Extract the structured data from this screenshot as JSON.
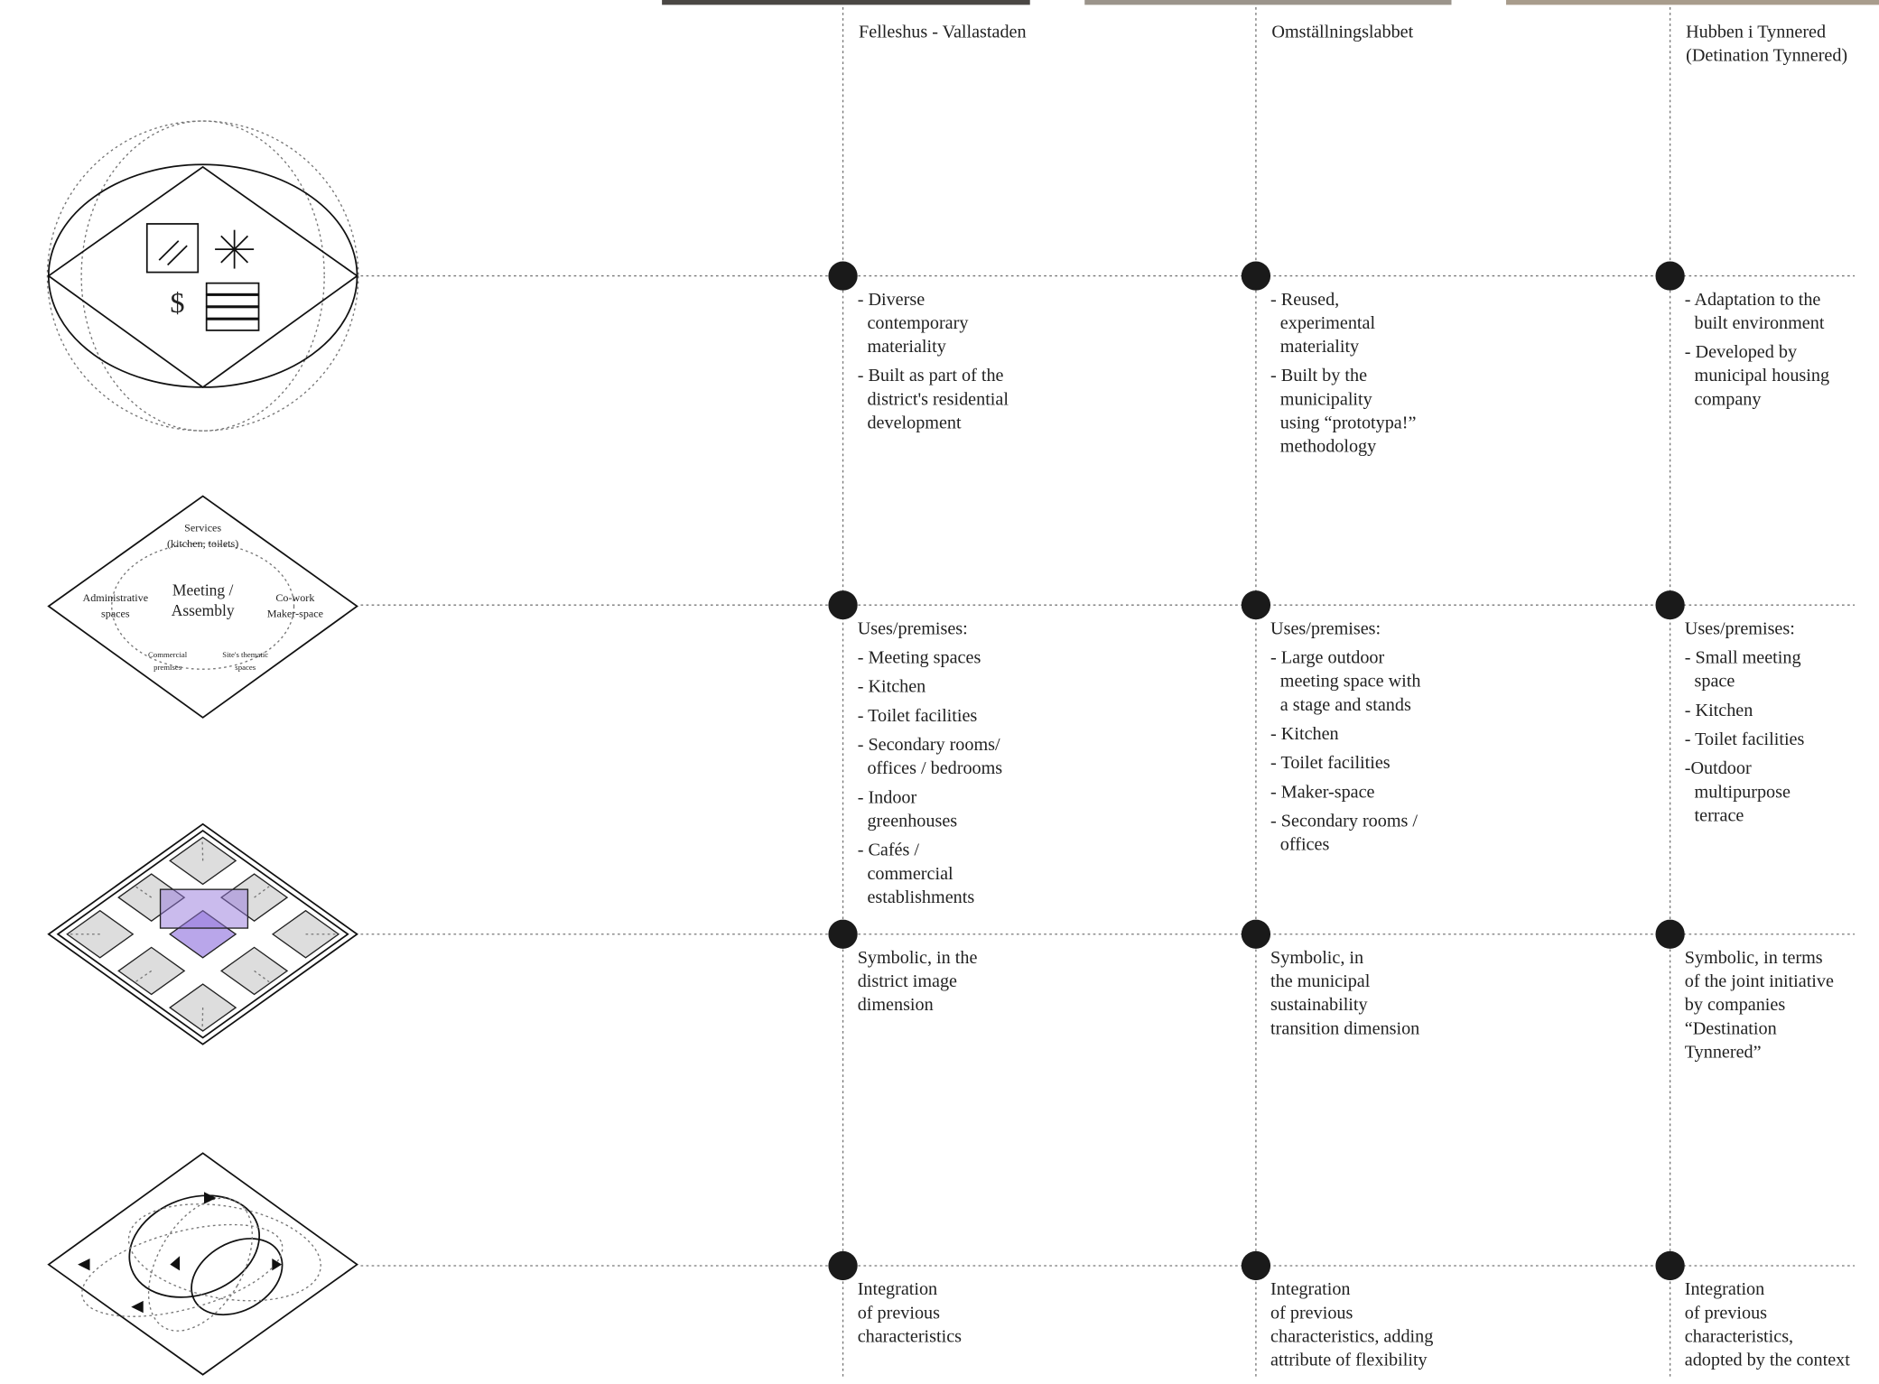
{
  "columns": [
    {
      "title": [
        "Felleshus - Vallastaden"
      ]
    },
    {
      "title": [
        "Omställningslabbet"
      ]
    },
    {
      "title": [
        "Hubben i Tynnered",
        "(Detination Tynnered)"
      ]
    }
  ],
  "icons": {
    "materiality": {
      "symbol": "$"
    },
    "program": {
      "services": [
        "Services",
        "(kitchen, toilets)"
      ],
      "administrative": [
        "Administrative",
        "spaces"
      ],
      "center": [
        "Meeting /",
        "Assembly"
      ],
      "cowork": [
        "Co-work",
        "Maker-space"
      ],
      "commercial": [
        "Commercial",
        "premises"
      ],
      "thematic": [
        "Site's thematic",
        "spaces"
      ]
    }
  },
  "rows": [
    {
      "cells": [
        [
          "- Diverse",
          "contemporary",
          "materiality",
          "- Built as part of the",
          "district's residential",
          "development"
        ],
        [
          "- Reused,",
          "experimental",
          "materiality",
          "- Built by the",
          "municipality",
          "using “prototypa!”",
          "methodology"
        ],
        [
          "- Adaptation to the",
          "built environment",
          "- Developed by",
          "municipal housing",
          "company"
        ]
      ]
    },
    {
      "cells": [
        [
          "Uses/premises:",
          "- Meeting spaces",
          "- Kitchen",
          "- Toilet facilities",
          "- Secondary rooms/",
          "offices / bedrooms",
          "- Indoor",
          "greenhouses",
          "- Cafés /",
          "commercial",
          "establishments"
        ],
        [
          "Uses/premises:",
          "- Large outdoor",
          "meeting space with",
          "a stage and stands",
          "- Kitchen",
          "- Toilet facilities",
          "- Maker-space",
          "- Secondary rooms /",
          "offices"
        ],
        [
          "Uses/premises:",
          "- Small meeting",
          "space",
          "- Kitchen",
          "- Toilet facilities",
          "-Outdoor",
          "multipurpose",
          "terrace"
        ]
      ]
    },
    {
      "cells": [
        [
          "Symbolic, in the",
          "district image",
          "dimension"
        ],
        [
          "Symbolic, in",
          "the municipal",
          "sustainability",
          "transition dimension"
        ],
        [
          "Symbolic, in terms",
          "of the joint initiative",
          "by companies",
          "“Destination",
          "Tynnered”"
        ]
      ]
    },
    {
      "cells": [
        [
          "Integration",
          "of previous",
          "characteristics"
        ],
        [
          "Integration",
          "of previous",
          "characteristics, adding",
          "attribute of flexibility"
        ],
        [
          "Integration",
          "of previous",
          "characteristics,",
          "adopted by the context"
        ]
      ]
    }
  ]
}
